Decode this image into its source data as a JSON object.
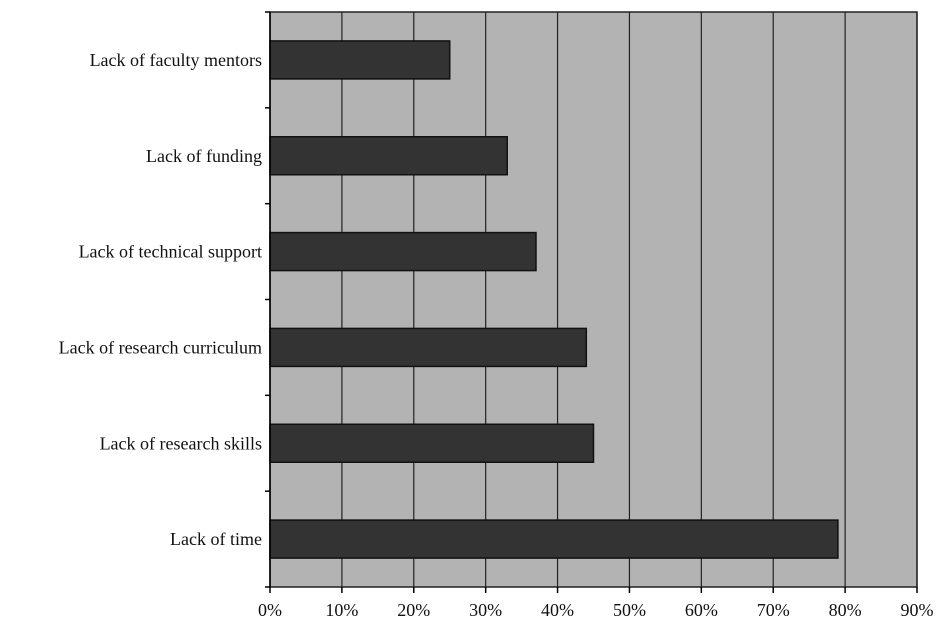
{
  "chart_data": {
    "type": "bar",
    "orientation": "horizontal",
    "title": "",
    "xlabel": "",
    "ylabel": "",
    "categories": [
      "Lack of faculty mentors",
      "Lack of funding",
      "Lack of technical support",
      "Lack of research curriculum",
      "Lack of research skills",
      "Lack of time"
    ],
    "values": [
      25,
      33,
      37,
      44,
      45,
      79
    ],
    "value_unit": "percent",
    "xlim": [
      0,
      90
    ],
    "x_ticks": [
      0,
      10,
      20,
      30,
      40,
      50,
      60,
      70,
      80,
      90
    ],
    "x_tick_labels": [
      "0%",
      "10%",
      "20%",
      "30%",
      "40%",
      "50%",
      "60%",
      "70%",
      "80%",
      "90%"
    ],
    "grid": "vertical",
    "legend": "none",
    "colors": {
      "plot_background": "#b3b3b3",
      "bar_fill": "#333333",
      "bar_edge": "#111111",
      "gridline": "#222222"
    }
  }
}
